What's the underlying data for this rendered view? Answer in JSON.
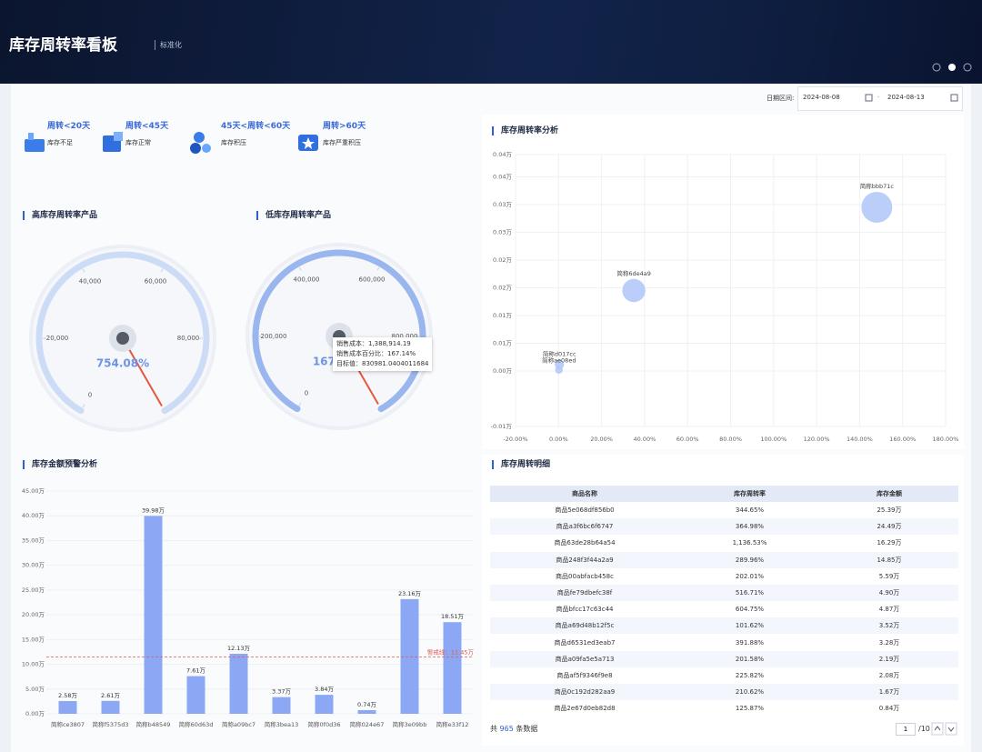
{
  "header": {
    "title": "库存周转率看板",
    "tag": "标准化"
  },
  "date_filter": {
    "label": "日期区间:",
    "start": "2024-08-08",
    "separator": "-",
    "end": "2024-08-13"
  },
  "kpis": [
    {
      "title": "周转<20天",
      "label": "库存不足"
    },
    {
      "title": "周转<45天",
      "label": "库存正常"
    },
    {
      "title": "45天<周转<60天",
      "label": "库存积压"
    },
    {
      "title": "周转>60天",
      "label": "库存严重积压"
    }
  ],
  "chart_data": [
    {
      "type": "gauge",
      "title": "高库存周转率产品",
      "min": 0,
      "max": 100000,
      "ticks": [
        0,
        {
          "value": 20000,
          "label": "20,000"
        },
        {
          "value": 40000,
          "label": "40,000"
        },
        {
          "value": 60000,
          "label": "60,000"
        },
        {
          "value": 80000,
          "label": "80,000"
        }
      ],
      "pointer": 100000,
      "center_text": "754.08%",
      "color": "#cddcf6"
    },
    {
      "type": "gauge",
      "title": "低库存周转率产品",
      "min": 0,
      "max": 1000000,
      "ticks": [
        0,
        {
          "value": 200000,
          "label": "200,000"
        },
        {
          "value": 400000,
          "label": "400,000"
        },
        {
          "value": 600000,
          "label": "600,000"
        },
        {
          "value": 800000,
          "label": "800,000"
        }
      ],
      "pointer": 1000000,
      "center_text": "167.14%",
      "color": "#9ab6ee",
      "tooltip": [
        "销售成本：1,388,914.19",
        "销售成本百分比：167.14%",
        "目标值：830981.0404011684"
      ]
    },
    {
      "type": "scatter",
      "title": "库存周转率分析",
      "x": [
        148,
        35,
        0.4,
        0.2
      ],
      "values": [
        0.0345,
        0.0195,
        0.0062,
        0.0052
      ],
      "sizes": [
        32,
        18,
        3,
        2
      ],
      "labels": [
        "简称bbb71c",
        "简称6de4a9",
        "简称d017cc",
        "简称ae08ed"
      ],
      "xlim": [
        -20,
        180
      ],
      "xticks": [
        {
          "value": -20,
          "label": "-20.00%"
        },
        {
          "value": 0,
          "label": "0.00%"
        },
        {
          "value": 20,
          "label": "20.00%"
        },
        {
          "value": 40,
          "label": "40.00%"
        },
        {
          "value": 60,
          "label": "60.00%"
        },
        {
          "value": 80,
          "label": "80.00%"
        },
        {
          "value": 100,
          "label": "100.00%"
        },
        {
          "value": 120,
          "label": "120.00%"
        },
        {
          "value": 140,
          "label": "140.00%"
        },
        {
          "value": 160,
          "label": "160.00%"
        },
        {
          "value": 180,
          "label": "180.00%"
        }
      ],
      "ylim": [
        -0.005,
        0.044
      ],
      "yticks": [
        {
          "value": 0.044,
          "label": "0.04万"
        },
        {
          "value": 0.04,
          "label": "0.04万"
        },
        {
          "value": 0.035,
          "label": "0.03万"
        },
        {
          "value": 0.03,
          "label": "0.03万"
        },
        {
          "value": 0.025,
          "label": "0.02万"
        },
        {
          "value": 0.02,
          "label": "0.02万"
        },
        {
          "value": 0.015,
          "label": "0.01万"
        },
        {
          "value": 0.01,
          "label": "0.01万"
        },
        {
          "value": 0.005,
          "label": "0.00万"
        },
        {
          "value": -0.005,
          "label": "-0.01万"
        }
      ],
      "grid": true,
      "color": "#b4c9f8"
    },
    {
      "type": "bar",
      "title": "库存金额预警分析",
      "categories": [
        "简称ce3807",
        "简称f5375d3",
        "简称b48549",
        "简称60d63d",
        "简称a09bc7",
        "简称3bea13",
        "简称0f0d36",
        "简称024e67",
        "简称3e09bb",
        "简称e33f12"
      ],
      "values": [
        2.58,
        2.61,
        39.98,
        7.61,
        12.13,
        3.37,
        3.84,
        0.74,
        23.16,
        18.51
      ],
      "value_labels": [
        "2.58万",
        "2.61万",
        "39.98万",
        "7.61万",
        "12.13万",
        "3.37万",
        "3.84万",
        "0.74万",
        "23.16万",
        "18.51万"
      ],
      "ylim": [
        0,
        45
      ],
      "yticks": [
        {
          "value": 0,
          "label": "0.00万"
        },
        {
          "value": 5,
          "label": "5.00万"
        },
        {
          "value": 10,
          "label": "10.00万"
        },
        {
          "value": 15,
          "label": "15.00万"
        },
        {
          "value": 20,
          "label": "20.00万"
        },
        {
          "value": 25,
          "label": "25.00万"
        },
        {
          "value": 30,
          "label": "30.00万"
        },
        {
          "value": 35,
          "label": "35.00万"
        },
        {
          "value": 40,
          "label": "40.00万"
        },
        {
          "value": 45,
          "label": "45.00万"
        }
      ],
      "grid": true,
      "color": "#8ca8f4",
      "threshold": {
        "value": 11.45,
        "label": "警戒线：11.45万",
        "color": "#e05a4f"
      }
    }
  ],
  "table": {
    "title": "库存周转明细",
    "columns": [
      "商品名称",
      "库存周转率",
      "库存金额"
    ],
    "rows": [
      [
        "商品5e068df856b0",
        "344.65%",
        "25.39万"
      ],
      [
        "商品a3f6bc6f6747",
        "364.98%",
        "24.49万"
      ],
      [
        "商品63de28b64a54",
        "1,136.53%",
        "16.29万"
      ],
      [
        "商品248f3f44a2a9",
        "289.96%",
        "14.85万"
      ],
      [
        "商品00abfacb458c",
        "202.01%",
        "5.59万"
      ],
      [
        "商品fe79dbefc38f",
        "516.71%",
        "4.90万"
      ],
      [
        "商品bfcc17c63c44",
        "604.75%",
        "4.87万"
      ],
      [
        "商品a69d48b12f5c",
        "101.62%",
        "3.52万"
      ],
      [
        "商品d6531ed3eab7",
        "391.88%",
        "3.28万"
      ],
      [
        "商品a09fa5e5a713",
        "201.58%",
        "2.19万"
      ],
      [
        "商品af5f9346f9e8",
        "225.82%",
        "2.08万"
      ],
      [
        "商品0c192d282aa9",
        "210.62%",
        "1.67万"
      ],
      [
        "商品2e67d0eb82d8",
        "125.87%",
        "0.84万"
      ]
    ],
    "footer": {
      "prefix": "共",
      "total": 965,
      "suffix": "条数据"
    },
    "pagination": {
      "page": "1",
      "pages": "/10"
    }
  }
}
